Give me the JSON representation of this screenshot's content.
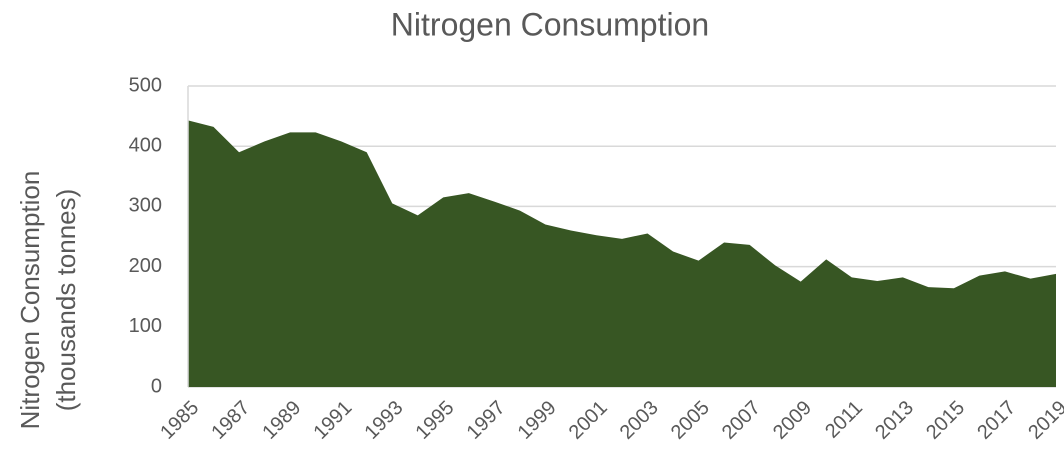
{
  "chart_data": {
    "type": "area",
    "title": "Nitrogen Consumption",
    "y_label": [
      "Nitrogen Consumption",
      "(thousands tonnes)"
    ],
    "categories": [
      "1985",
      null,
      "1987",
      null,
      "1989",
      null,
      "1991",
      null,
      "1993",
      null,
      "1995",
      null,
      "1997",
      null,
      "1999",
      null,
      "2001",
      null,
      "2003",
      null,
      "2005",
      null,
      "2007",
      null,
      "2009",
      null,
      "2011",
      null,
      "2013",
      null,
      "2015",
      null,
      "2017",
      null,
      "2019"
    ],
    "values": [
      443,
      432,
      390,
      408,
      423,
      423,
      408,
      390,
      305,
      285,
      315,
      322,
      308,
      293,
      270,
      260,
      252,
      246,
      255,
      225,
      210,
      240,
      236,
      202,
      175,
      212,
      182,
      176,
      182,
      166,
      164,
      185,
      192,
      180,
      188
    ],
    "color": "#375623",
    "ylim": [
      0,
      500
    ],
    "yticks": [
      0,
      100,
      200,
      300,
      400,
      500
    ],
    "grid": true
  }
}
